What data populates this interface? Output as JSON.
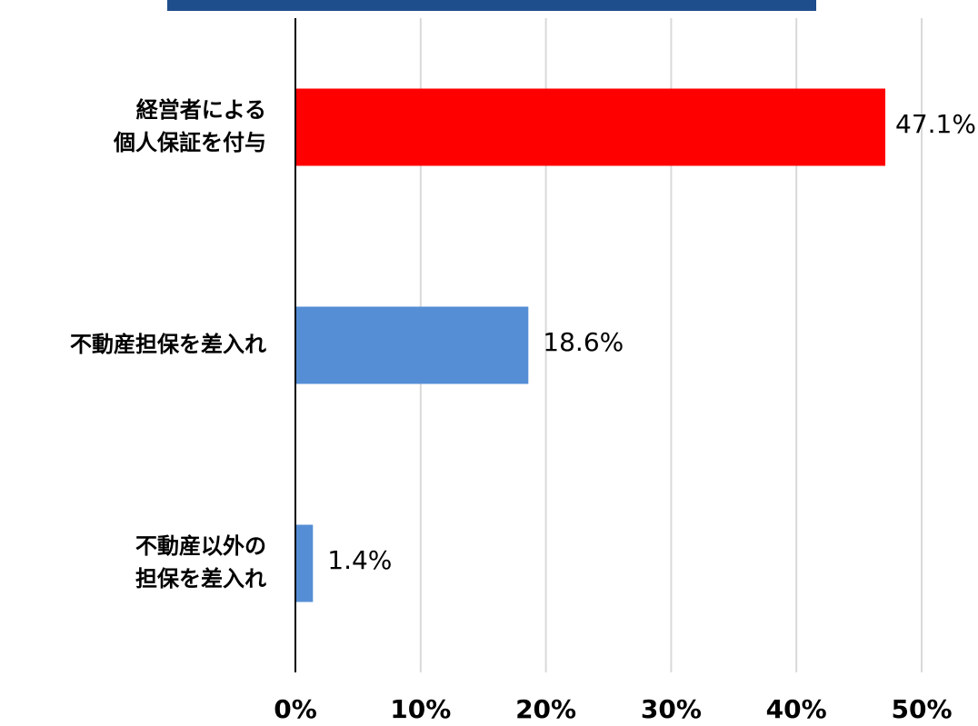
{
  "chart_data": {
    "type": "hbar",
    "categories": [
      "経営者による\n個人保証を付与",
      "不動産担保を差入れ",
      "不動産以外の\n担保を差入れ"
    ],
    "values": [
      47.1,
      18.6,
      1.4
    ],
    "value_labels": [
      "47.1%",
      "18.6%",
      "1.4%"
    ],
    "colors": [
      "#ff0000",
      "#558ed5",
      "#558ed5"
    ],
    "xlim": [
      0,
      50
    ],
    "xticks": [
      {
        "value": 0,
        "label": "0%"
      },
      {
        "value": 10,
        "label": "10%"
      },
      {
        "value": 20,
        "label": "20%"
      },
      {
        "value": 30,
        "label": "30%"
      },
      {
        "value": 40,
        "label": "40%"
      },
      {
        "value": 50,
        "label": "50%"
      }
    ],
    "grid": true
  }
}
